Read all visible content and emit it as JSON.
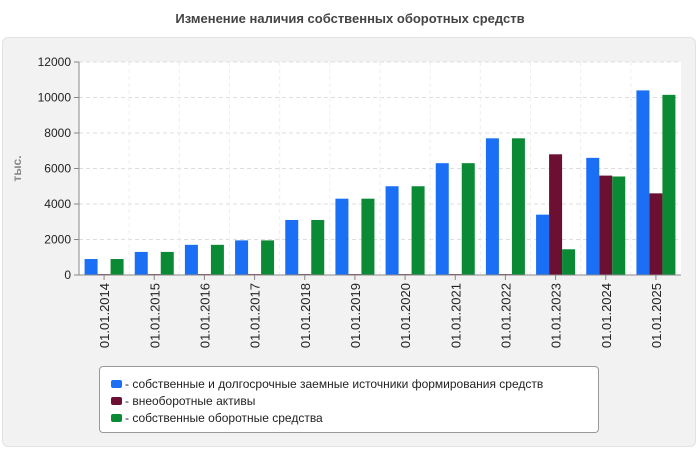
{
  "title": "Изменение наличия собственных оборотных средств",
  "chart_data": {
    "type": "bar",
    "title": "Изменение наличия собственных оборотных средств",
    "xlabel": "",
    "ylabel": "тыс.",
    "ylim": [
      0,
      12000
    ],
    "yticks": [
      0,
      2000,
      4000,
      6000,
      8000,
      10000,
      12000
    ],
    "grid": true,
    "legend_position": "bottom",
    "categories": [
      "01.01.2014",
      "01.01.2015",
      "01.01.2016",
      "01.01.2017",
      "01.01.2018",
      "01.01.2019",
      "01.01.2020",
      "01.01.2021",
      "01.01.2022",
      "01.01.2023",
      "01.01.2024",
      "01.01.2025"
    ],
    "series": [
      {
        "name": "- собственные и долгосрочные заемные источники формирования средств",
        "color": "#1a6ff5",
        "values": [
          900,
          1300,
          1700,
          1950,
          3100,
          4300,
          5000,
          6300,
          7700,
          3400,
          6600,
          10400
        ]
      },
      {
        "name": "- внеоборотные активы",
        "color": "#6b0f33",
        "values": [
          50,
          50,
          50,
          50,
          50,
          50,
          50,
          50,
          50,
          6800,
          5600,
          4600
        ]
      },
      {
        "name": "- собственные оборотные средства",
        "color": "#0a8a34",
        "values": [
          900,
          1300,
          1700,
          1950,
          3100,
          4300,
          5000,
          6300,
          7700,
          1450,
          5550,
          10150
        ]
      }
    ]
  }
}
